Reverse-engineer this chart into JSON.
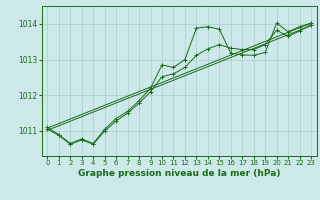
{
  "background_color": "#cde8e8",
  "plot_bg_color": "#cde8e8",
  "line_color": "#1a6b1a",
  "grid_color": "#a8cccc",
  "xlabel": "Graphe pression niveau de la mer (hPa)",
  "xlabel_fontsize": 6.5,
  "ylabel_ticks": [
    1011,
    1012,
    1013,
    1014
  ],
  "xlim": [
    -0.5,
    23.5
  ],
  "ylim": [
    1010.3,
    1014.5
  ],
  "series1_x": [
    0,
    1,
    2,
    3,
    4,
    5,
    6,
    7,
    8,
    9,
    10,
    11,
    12,
    13,
    14,
    15,
    16,
    17,
    18,
    19,
    20,
    21,
    22,
    23
  ],
  "series1_y": [
    1011.1,
    1010.9,
    1010.65,
    1010.78,
    1010.65,
    1011.05,
    1011.35,
    1011.55,
    1011.85,
    1012.2,
    1012.85,
    1012.78,
    1013.0,
    1013.88,
    1013.92,
    1013.85,
    1013.18,
    1013.13,
    1013.12,
    1013.2,
    1014.02,
    1013.78,
    1013.92,
    1014.02
  ],
  "series2_x": [
    0,
    1,
    2,
    3,
    4,
    5,
    6,
    7,
    8,
    9,
    10,
    11,
    12,
    13,
    14,
    15,
    16,
    17,
    18,
    19,
    20,
    21,
    22,
    23
  ],
  "series2_y": [
    1011.05,
    1010.88,
    1010.63,
    1010.75,
    1010.63,
    1011.0,
    1011.28,
    1011.5,
    1011.78,
    1012.1,
    1012.52,
    1012.6,
    1012.78,
    1013.12,
    1013.3,
    1013.42,
    1013.32,
    1013.28,
    1013.28,
    1013.42,
    1013.82,
    1013.65,
    1013.8,
    1013.98
  ],
  "series3_x": [
    0,
    23
  ],
  "series3_y": [
    1011.08,
    1014.02
  ],
  "series4_x": [
    0,
    23
  ],
  "series4_y": [
    1011.02,
    1013.95
  ],
  "xtick_labels": [
    "0",
    "1",
    "2",
    "3",
    "4",
    "5",
    "6",
    "7",
    "8",
    "9",
    "10",
    "11",
    "12",
    "13",
    "14",
    "15",
    "16",
    "17",
    "18",
    "19",
    "20",
    "21",
    "22",
    "23"
  ],
  "tick_fontsize": 5.0,
  "ytick_fontsize": 5.5,
  "marker_size": 2.0,
  "linewidth": 0.7
}
